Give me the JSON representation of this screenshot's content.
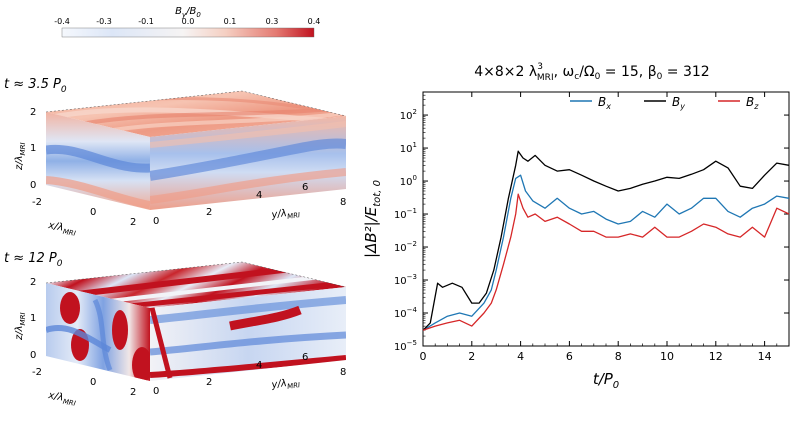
{
  "colors": {
    "bx": "#1f77b4",
    "by": "#000000",
    "bz": "#d62728",
    "neg_strong": "#2b59c3",
    "neutral": "#f5f5f7",
    "pos_strong": "#c1121f"
  },
  "colorbar": {
    "label": "B_y/B_0",
    "ticks": [
      "-0.4",
      "-0.3",
      "-0.1",
      "0.0",
      "0.1",
      "0.3",
      "0.4"
    ]
  },
  "snapshots": [
    {
      "time_label": "t ≈ 3.5 P",
      "time_sub": "0",
      "z_axis": "z/λ",
      "x_axis": "x/λ",
      "y_axis": "y/λ",
      "axis_sub": "MRI",
      "z_ticks": [
        "0",
        "1",
        "2"
      ],
      "x_ticks": [
        "-2",
        "0",
        "2"
      ],
      "y_ticks": [
        "0",
        "2",
        "4",
        "6",
        "8"
      ]
    },
    {
      "time_label": "t ≈ 12 P",
      "time_sub": "0",
      "z_axis": "z/λ",
      "x_axis": "x/λ",
      "y_axis": "y/λ",
      "axis_sub": "MRI",
      "z_ticks": [
        "0",
        "1",
        "2"
      ],
      "x_ticks": [
        "-2",
        "0",
        "2"
      ],
      "y_ticks": [
        "0",
        "2",
        "4",
        "6",
        "8"
      ]
    }
  ],
  "chart_data": {
    "type": "line",
    "title": "4×8×2 λ³MRI, ωc/Ω0 = 15, β0 = 312",
    "title_parts": {
      "box": "4×8×2 λ",
      "box_sup": "3",
      "box_sub": "MRI",
      "rest": ", ω",
      "wc_sub": "c",
      "ratio": "/Ω",
      "omega_sub": "0",
      "ratio_val": " = 15, β",
      "beta_sub": "0",
      "beta_val": " = 312"
    },
    "xlabel": "t/P",
    "xlabel_sub": "0",
    "ylabel": "|ΔB²|/E",
    "ylabel_sub": "tot, 0",
    "xlim": [
      0,
      15
    ],
    "ylim": [
      1e-05,
      500
    ],
    "yscale": "log",
    "x_ticks": [
      0,
      2,
      4,
      6,
      8,
      10,
      12,
      14
    ],
    "y_ticks": [
      {
        "value": 1e-05,
        "base": "10",
        "exp": "−5"
      },
      {
        "value": 0.0001,
        "base": "10",
        "exp": "−4"
      },
      {
        "value": 0.001,
        "base": "10",
        "exp": "−3"
      },
      {
        "value": 0.01,
        "base": "10",
        "exp": "−2"
      },
      {
        "value": 0.1,
        "base": "10",
        "exp": "−1"
      },
      {
        "value": 1,
        "base": "10",
        "exp": "0"
      },
      {
        "value": 10,
        "base": "10",
        "exp": "1"
      },
      {
        "value": 100,
        "base": "10",
        "exp": "2"
      }
    ],
    "legend_position": "top-right",
    "series": [
      {
        "name": "B",
        "sub": "x",
        "color_key": "bx",
        "x": [
          0,
          0.5,
          1.0,
          1.5,
          2.0,
          2.5,
          2.8,
          3.0,
          3.3,
          3.6,
          3.8,
          4.0,
          4.2,
          4.5,
          5.0,
          5.5,
          6.0,
          6.5,
          7.0,
          7.5,
          8.0,
          8.5,
          9.0,
          9.5,
          10.0,
          10.5,
          11.0,
          11.5,
          12.0,
          12.5,
          13.0,
          13.5,
          14.0,
          14.5,
          15.0
        ],
        "y": [
          3e-05,
          5e-05,
          8e-05,
          0.0001,
          8e-05,
          0.0002,
          0.0005,
          0.002,
          0.02,
          0.3,
          1.2,
          1.5,
          0.5,
          0.25,
          0.15,
          0.3,
          0.15,
          0.1,
          0.12,
          0.07,
          0.05,
          0.06,
          0.12,
          0.08,
          0.2,
          0.1,
          0.15,
          0.3,
          0.3,
          0.12,
          0.08,
          0.15,
          0.2,
          0.35,
          0.3
        ]
      },
      {
        "name": "B",
        "sub": "y",
        "color_key": "by",
        "x": [
          0,
          0.3,
          0.6,
          0.8,
          1.2,
          1.6,
          2.0,
          2.3,
          2.6,
          2.9,
          3.2,
          3.5,
          3.8,
          3.9,
          4.1,
          4.3,
          4.6,
          5.0,
          5.5,
          6.0,
          6.5,
          7.0,
          7.5,
          8.0,
          8.5,
          9.0,
          9.5,
          10.0,
          10.5,
          11.0,
          11.5,
          12.0,
          12.5,
          13.0,
          13.5,
          14.0,
          14.5,
          15.0
        ],
        "y": [
          3e-05,
          5e-05,
          0.0008,
          0.0006,
          0.0008,
          0.0006,
          0.0002,
          0.0002,
          0.0004,
          0.002,
          0.02,
          0.3,
          3,
          8,
          5,
          4,
          6,
          3,
          2,
          2.2,
          1.5,
          1.0,
          0.7,
          0.5,
          0.6,
          0.8,
          1.0,
          1.3,
          1.2,
          1.6,
          2.2,
          4,
          2.5,
          0.7,
          0.6,
          1.5,
          3.5,
          3
        ]
      },
      {
        "name": "B",
        "sub": "z",
        "color_key": "bz",
        "x": [
          0,
          0.5,
          1.0,
          1.5,
          2.0,
          2.5,
          2.8,
          3.0,
          3.3,
          3.6,
          3.8,
          3.9,
          4.1,
          4.3,
          4.6,
          5.0,
          5.5,
          6.0,
          6.5,
          7.0,
          7.5,
          8.0,
          8.5,
          9.0,
          9.5,
          10.0,
          10.5,
          11.0,
          11.5,
          12.0,
          12.5,
          13.0,
          13.5,
          14.0,
          14.5,
          15.0
        ],
        "y": [
          3e-05,
          4e-05,
          5e-05,
          6e-05,
          4e-05,
          0.0001,
          0.0002,
          0.0005,
          0.003,
          0.02,
          0.1,
          0.4,
          0.15,
          0.08,
          0.1,
          0.06,
          0.08,
          0.05,
          0.03,
          0.03,
          0.02,
          0.02,
          0.025,
          0.02,
          0.04,
          0.02,
          0.02,
          0.03,
          0.05,
          0.04,
          0.025,
          0.02,
          0.04,
          0.02,
          0.15,
          0.1
        ]
      }
    ]
  }
}
